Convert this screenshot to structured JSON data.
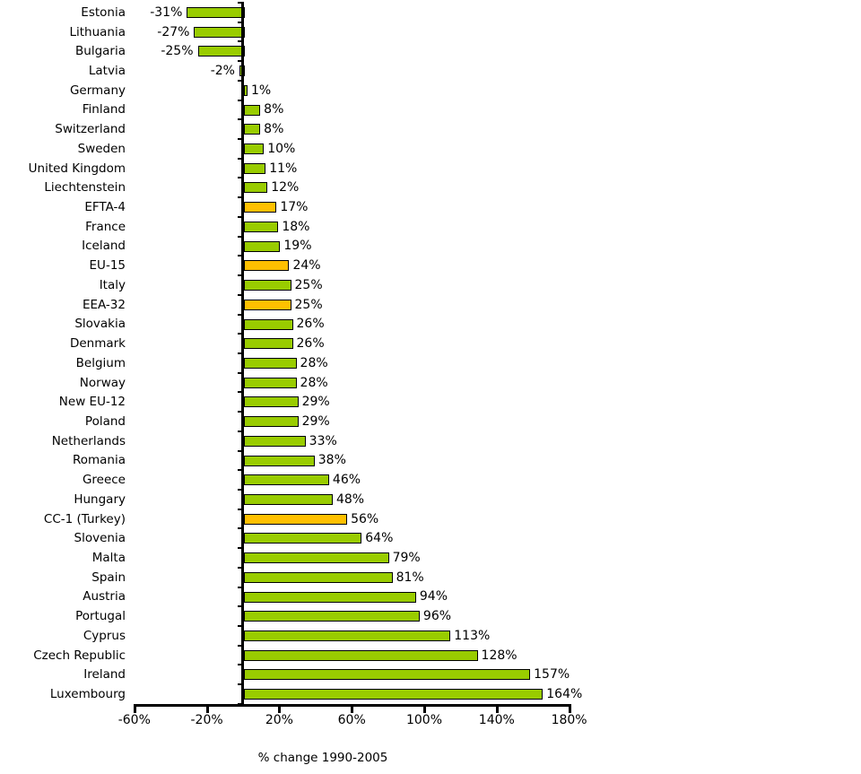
{
  "chart_data": {
    "type": "bar",
    "orientation": "horizontal",
    "title": "",
    "xlabel": "% change 1990-2005",
    "ylabel": "",
    "xlim": [
      -60,
      180
    ],
    "grid": false,
    "legend": "none",
    "x_ticks": [
      "-60%",
      "-20%",
      "20%",
      "60%",
      "100%",
      "140%",
      "180%"
    ],
    "x_tick_values": [
      -60,
      -20,
      20,
      60,
      100,
      140,
      180
    ],
    "colors": {
      "country_bar": "#99CC00",
      "aggregate_bar": "#FFC000",
      "bar_border": "#000000",
      "axis": "#000000",
      "text": "#000000"
    },
    "bars": [
      {
        "label": "Estonia",
        "value": -31,
        "display": "-31%",
        "group": "country"
      },
      {
        "label": "Lithuania",
        "value": -27,
        "display": "-27%",
        "group": "country"
      },
      {
        "label": "Bulgaria",
        "value": -25,
        "display": "-25%",
        "group": "country"
      },
      {
        "label": "Latvia",
        "value": -2,
        "display": "-2%",
        "group": "country"
      },
      {
        "label": "Germany",
        "value": 1,
        "display": "1%",
        "group": "country"
      },
      {
        "label": "Finland",
        "value": 8,
        "display": "8%",
        "group": "country"
      },
      {
        "label": "Switzerland",
        "value": 8,
        "display": "8%",
        "group": "country"
      },
      {
        "label": "Sweden",
        "value": 10,
        "display": "10%",
        "group": "country"
      },
      {
        "label": "United Kingdom",
        "value": 11,
        "display": "11%",
        "group": "country"
      },
      {
        "label": "Liechtenstein",
        "value": 12,
        "display": "12%",
        "group": "country"
      },
      {
        "label": "EFTA-4",
        "value": 17,
        "display": "17%",
        "group": "aggregate"
      },
      {
        "label": "France",
        "value": 18,
        "display": "18%",
        "group": "country"
      },
      {
        "label": "Iceland",
        "value": 19,
        "display": "19%",
        "group": "country"
      },
      {
        "label": "EU-15",
        "value": 24,
        "display": "24%",
        "group": "aggregate"
      },
      {
        "label": "Italy",
        "value": 25,
        "display": "25%",
        "group": "country"
      },
      {
        "label": "EEA-32",
        "value": 25,
        "display": "25%",
        "group": "aggregate"
      },
      {
        "label": "Slovakia",
        "value": 26,
        "display": "26%",
        "group": "country"
      },
      {
        "label": "Denmark",
        "value": 26,
        "display": "26%",
        "group": "country"
      },
      {
        "label": "Belgium",
        "value": 28,
        "display": "28%",
        "group": "country"
      },
      {
        "label": "Norway",
        "value": 28,
        "display": "28%",
        "group": "country"
      },
      {
        "label": "New EU-12",
        "value": 29,
        "display": "29%",
        "group": "aggregate_green"
      },
      {
        "label": "Poland",
        "value": 29,
        "display": "29%",
        "group": "country"
      },
      {
        "label": "Netherlands",
        "value": 33,
        "display": "33%",
        "group": "country"
      },
      {
        "label": "Romania",
        "value": 38,
        "display": "38%",
        "group": "country"
      },
      {
        "label": "Greece",
        "value": 46,
        "display": "46%",
        "group": "country"
      },
      {
        "label": "Hungary",
        "value": 48,
        "display": "48%",
        "group": "country"
      },
      {
        "label": "CC-1 (Turkey)",
        "value": 56,
        "display": "56%",
        "group": "aggregate"
      },
      {
        "label": "Slovenia",
        "value": 64,
        "display": "64%",
        "group": "country"
      },
      {
        "label": "Malta",
        "value": 79,
        "display": "79%",
        "group": "country"
      },
      {
        "label": "Spain",
        "value": 81,
        "display": "81%",
        "group": "country"
      },
      {
        "label": "Austria",
        "value": 94,
        "display": "94%",
        "group": "country"
      },
      {
        "label": "Portugal",
        "value": 96,
        "display": "96%",
        "group": "country"
      },
      {
        "label": "Cyprus",
        "value": 113,
        "display": "113%",
        "group": "country"
      },
      {
        "label": "Czech Republic",
        "value": 128,
        "display": "128%",
        "group": "country"
      },
      {
        "label": "Ireland",
        "value": 157,
        "display": "157%",
        "group": "country"
      },
      {
        "label": "Luxembourg",
        "value": 164,
        "display": "164%",
        "group": "country"
      }
    ]
  }
}
